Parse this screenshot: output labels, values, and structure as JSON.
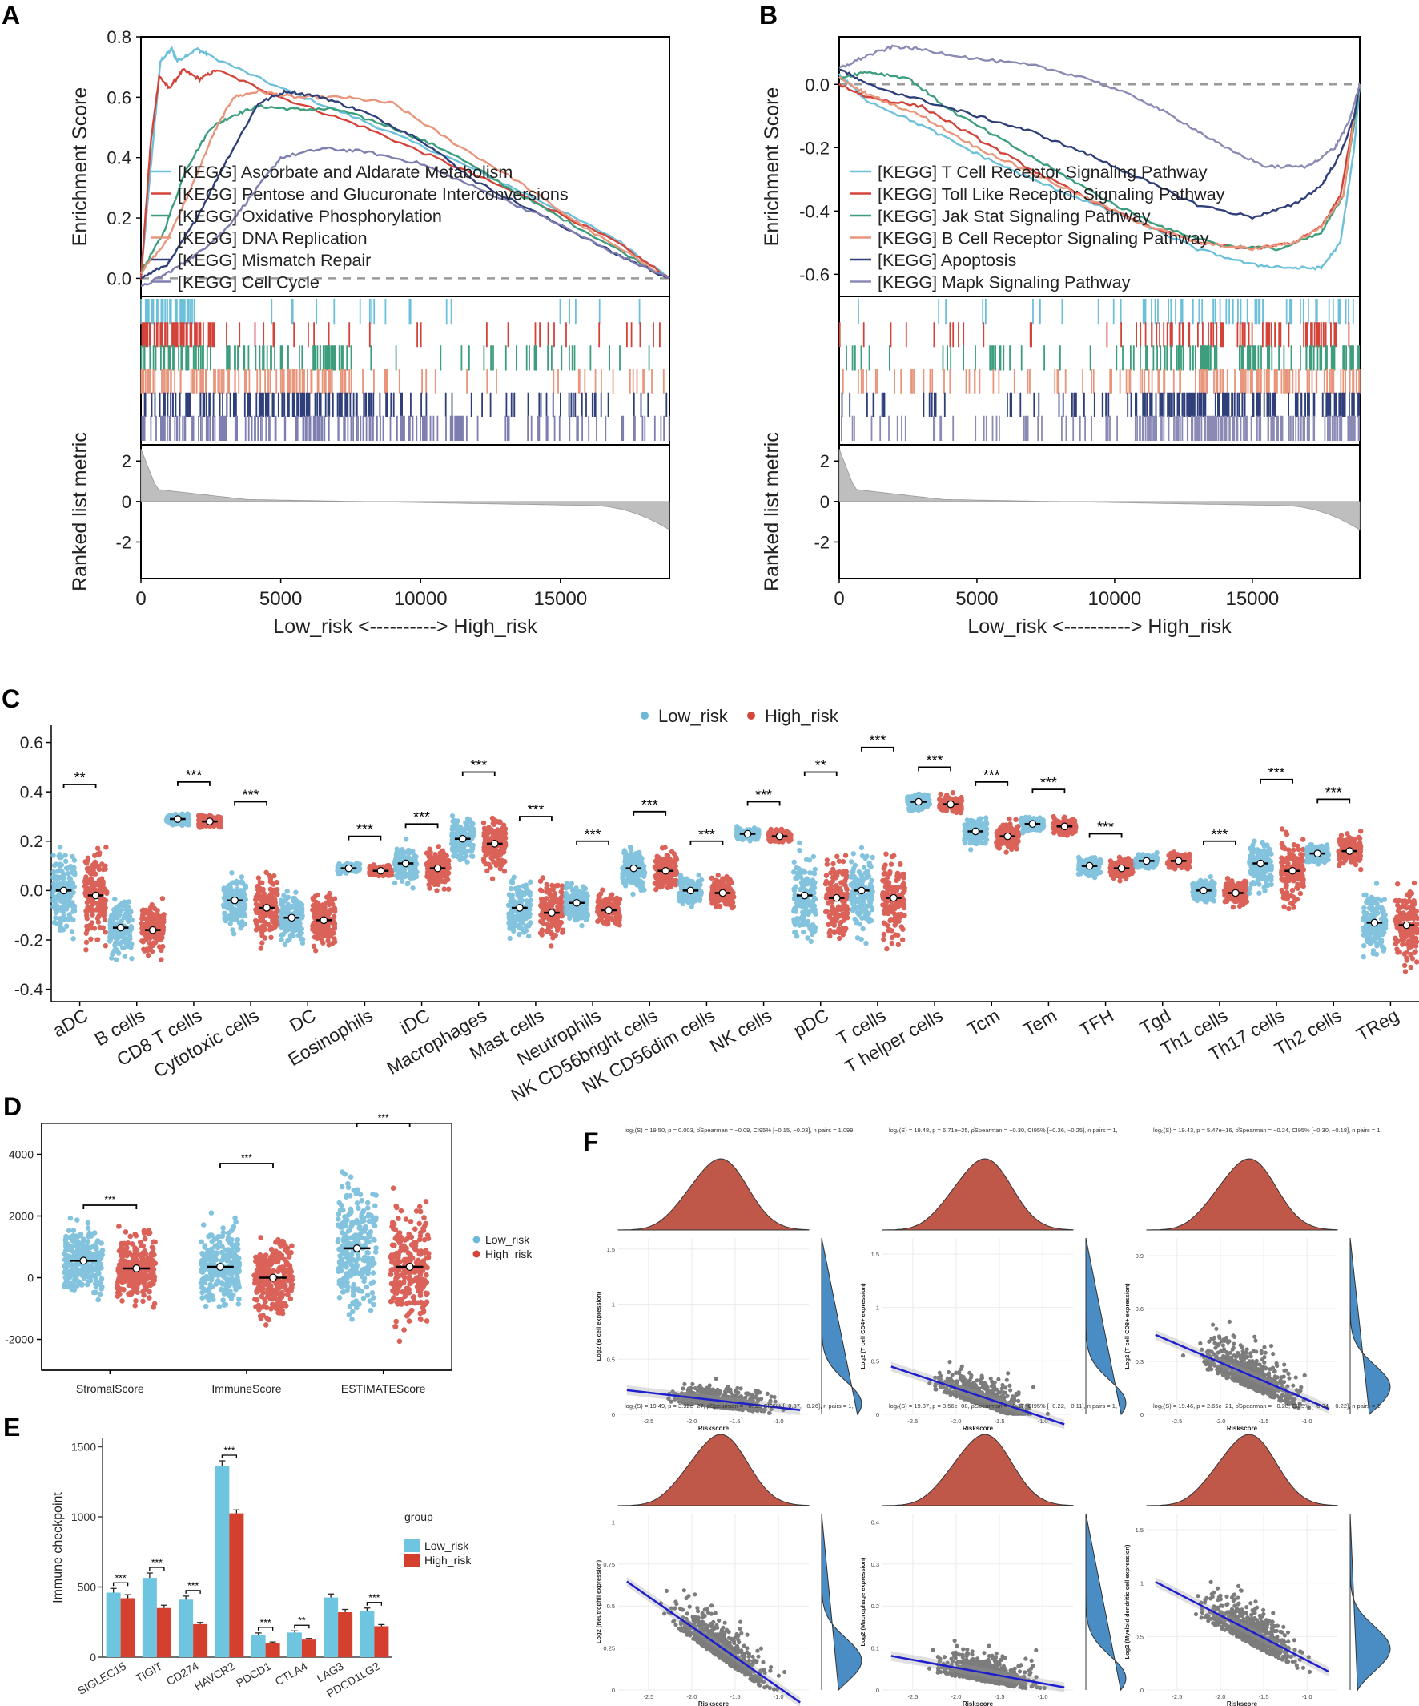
{
  "panel_letters": [
    "A",
    "B",
    "C",
    "D",
    "E",
    "F"
  ],
  "colors": {
    "low": "#6DB8D8",
    "high": "#D4473B",
    "low_bar": "#6EC5E0",
    "high_bar": "#D43F2E",
    "dens_top": "#C0584A",
    "dens_side": "#4A8CC4",
    "fit": "#1E1ECD",
    "grid": "#EBEBEB",
    "ranked": "#BEBEBE",
    "dashed": "#9A9A9A"
  },
  "chart_data": [
    {
      "id": "A",
      "type": "line",
      "title": "",
      "ylabel": "Enrichment Score",
      "ylim": [
        -0.06,
        0.8
      ],
      "yticks": [
        0.0,
        0.2,
        0.4,
        0.6,
        0.8
      ],
      "xlim": [
        0,
        18900
      ],
      "xticks": [
        0,
        5000,
        10000,
        15000
      ],
      "xlabel": "Low_risk <----------> High_risk",
      "ranked_label": "Ranked list metric",
      "ranked_yticks": [
        2,
        0,
        -2
      ],
      "ranked_ylim": [
        -3.8,
        2.8
      ],
      "ranked_range": [
        2.6,
        -1.4
      ],
      "series": [
        {
          "name": "[KEGG] Ascorbate and Aldarate Metabolism",
          "color": "#6DC0DA",
          "x": [
            0,
            400,
            700,
            1100,
            1300,
            2000,
            2400,
            5000,
            8000,
            11000,
            14000,
            17000,
            18900
          ],
          "y": [
            0,
            0.42,
            0.72,
            0.76,
            0.72,
            0.76,
            0.74,
            0.63,
            0.52,
            0.4,
            0.27,
            0.13,
            0.0
          ]
        },
        {
          "name": "[KEGG] Pentose and Glucuronate Interconversions",
          "color": "#D4433A",
          "x": [
            0,
            350,
            650,
            1000,
            1500,
            2100,
            2700,
            5000,
            8000,
            11000,
            14000,
            17000,
            18900
          ],
          "y": [
            0,
            0.45,
            0.67,
            0.63,
            0.69,
            0.66,
            0.69,
            0.6,
            0.5,
            0.38,
            0.26,
            0.12,
            0.0
          ]
        },
        {
          "name": "[KEGG] Oxidative Phosphorylation",
          "color": "#3D9E7E",
          "x": [
            0,
            800,
            1600,
            2500,
            3300,
            4200,
            5500,
            7000,
            9000,
            11000,
            13500,
            16000,
            18900
          ],
          "y": [
            0.02,
            0.15,
            0.36,
            0.5,
            0.54,
            0.57,
            0.56,
            0.56,
            0.5,
            0.42,
            0.28,
            0.15,
            0.0
          ]
        },
        {
          "name": "[KEGG] DNA Replication",
          "color": "#E8957B",
          "x": [
            0,
            900,
            1800,
            2600,
            3300,
            4200,
            5500,
            7200,
            9000,
            11000,
            13500,
            16000,
            18900
          ],
          "y": [
            0.02,
            0.12,
            0.3,
            0.48,
            0.6,
            0.62,
            0.6,
            0.6,
            0.58,
            0.46,
            0.32,
            0.16,
            0.0
          ]
        },
        {
          "name": "[KEGG] Mismatch Repair",
          "color": "#2F3F7A",
          "x": [
            0,
            1000,
            2000,
            3000,
            4200,
            5200,
            6500,
            8000,
            10000,
            12000,
            14500,
            17000,
            18900
          ],
          "y": [
            0.0,
            0.05,
            0.2,
            0.38,
            0.58,
            0.62,
            0.6,
            0.55,
            0.46,
            0.32,
            0.2,
            0.08,
            0.0
          ]
        },
        {
          "name": "[KEGG] Cell Cycle",
          "color": "#7E7EB0",
          "x": [
            0,
            1000,
            2000,
            3000,
            4000,
            5000,
            6500,
            8000,
            10000,
            12000,
            14500,
            17000,
            18900
          ],
          "y": [
            -0.03,
            0.02,
            0.08,
            0.16,
            0.28,
            0.4,
            0.43,
            0.42,
            0.38,
            0.3,
            0.2,
            0.08,
            0.0
          ]
        }
      ]
    },
    {
      "id": "B",
      "type": "line",
      "title": "",
      "ylabel": "Enrichment Score",
      "ylim": [
        -0.67,
        0.15
      ],
      "yticks": [
        0.0,
        -0.2,
        -0.4,
        -0.6
      ],
      "xlim": [
        0,
        18900
      ],
      "xticks": [
        0,
        5000,
        10000,
        15000
      ],
      "xlabel": "Low_risk <----------> High_risk",
      "ranked_label": "Ranked list metric",
      "ranked_yticks": [
        2,
        0,
        -2
      ],
      "ranked_ylim": [
        -3.8,
        2.8
      ],
      "ranked_range": [
        2.6,
        -1.4
      ],
      "series": [
        {
          "name": "[KEGG] T Cell Receptor Signaling Pathway",
          "color": "#6DC0DA",
          "x": [
            0,
            1000,
            3000,
            5000,
            7000,
            9000,
            11000,
            13000,
            15000,
            16500,
            17500,
            18200,
            18700,
            18900
          ],
          "y": [
            0.03,
            -0.05,
            -0.13,
            -0.22,
            -0.3,
            -0.37,
            -0.44,
            -0.52,
            -0.57,
            -0.58,
            -0.58,
            -0.5,
            -0.2,
            0.0
          ]
        },
        {
          "name": "[KEGG] Toll Like Receptor Signaling Pathway",
          "color": "#D4433A",
          "x": [
            0,
            1000,
            3000,
            5000,
            7000,
            9000,
            11000,
            13000,
            15000,
            16500,
            17500,
            18200,
            18700,
            18900
          ],
          "y": [
            0.0,
            -0.04,
            -0.07,
            -0.17,
            -0.27,
            -0.36,
            -0.44,
            -0.5,
            -0.52,
            -0.5,
            -0.45,
            -0.35,
            -0.1,
            0.0
          ]
        },
        {
          "name": "[KEGG] Jak Stat Signaling Pathway",
          "color": "#3D9E7E",
          "x": [
            0,
            1000,
            2500,
            4000,
            6000,
            8000,
            10000,
            12000,
            14000,
            16000,
            17500,
            18300,
            18700,
            18900
          ],
          "y": [
            0.02,
            0.04,
            0.02,
            -0.08,
            -0.18,
            -0.28,
            -0.38,
            -0.46,
            -0.51,
            -0.52,
            -0.47,
            -0.35,
            -0.12,
            0.0
          ]
        },
        {
          "name": "[KEGG] B Cell Receptor Signaling Pathway",
          "color": "#E8957B",
          "x": [
            0,
            1000,
            3000,
            5000,
            7000,
            9000,
            11000,
            13000,
            15000,
            16500,
            17500,
            18300,
            18700,
            18900
          ],
          "y": [
            0.02,
            -0.03,
            -0.1,
            -0.2,
            -0.28,
            -0.36,
            -0.44,
            -0.5,
            -0.52,
            -0.5,
            -0.45,
            -0.35,
            -0.1,
            0.0
          ]
        },
        {
          "name": "[KEGG] Apoptosis",
          "color": "#2F3F7A",
          "x": [
            0,
            1000,
            3000,
            5000,
            7000,
            9000,
            11000,
            13000,
            15000,
            16500,
            17500,
            18200,
            18700,
            18900
          ],
          "y": [
            0.05,
            0.0,
            -0.05,
            -0.1,
            -0.15,
            -0.22,
            -0.3,
            -0.38,
            -0.42,
            -0.38,
            -0.32,
            -0.22,
            -0.1,
            0.0
          ]
        },
        {
          "name": "[KEGG] Mapk Signaling Pathway",
          "color": "#8A8AB5",
          "x": [
            0,
            1000,
            2000,
            3000,
            5000,
            7000,
            9000,
            11000,
            12500,
            14000,
            15500,
            17000,
            18000,
            18500,
            18900
          ],
          "y": [
            0.05,
            0.09,
            0.12,
            0.11,
            0.08,
            0.06,
            0.02,
            -0.05,
            -0.12,
            -0.2,
            -0.26,
            -0.26,
            -0.2,
            -0.12,
            0.0
          ]
        }
      ]
    },
    {
      "id": "C",
      "type": "scatter",
      "legend": [
        "Low_risk",
        "High_risk"
      ],
      "ylim": [
        -0.45,
        0.67
      ],
      "yticks": [
        0.6,
        0.4,
        0.2,
        0.0,
        -0.2,
        -0.4
      ],
      "categories": [
        "aDC",
        "B cells",
        "CD8 T cells",
        "Cytotoxic cells",
        "DC",
        "Eosinophils",
        "iDC",
        "Macrophages",
        "Mast cells",
        "Neutrophils",
        "NK CD56bright cells",
        "NK CD56dim cells",
        "NK cells",
        "pDC",
        "T cells",
        "T helper cells",
        "Tcm",
        "Tem",
        "TFH",
        "Tgd",
        "Th1 cells",
        "Th17 cells",
        "Th2 cells",
        "TReg"
      ],
      "low_median": [
        0.0,
        -0.15,
        0.29,
        -0.04,
        -0.11,
        0.09,
        0.11,
        0.21,
        -0.07,
        -0.05,
        0.09,
        0.0,
        0.23,
        -0.02,
        0.0,
        0.36,
        0.24,
        0.27,
        0.1,
        0.12,
        0.0,
        0.11,
        0.15,
        -0.13
      ],
      "high_median": [
        -0.02,
        -0.16,
        0.28,
        -0.07,
        -0.12,
        0.08,
        0.09,
        0.19,
        -0.09,
        -0.08,
        0.08,
        -0.01,
        0.22,
        -0.03,
        -0.03,
        0.35,
        0.22,
        0.26,
        0.09,
        0.12,
        -0.01,
        0.08,
        0.16,
        -0.14
      ],
      "low_min": [
        -0.2,
        -0.28,
        0.24,
        -0.2,
        -0.27,
        0.05,
        -0.02,
        0.05,
        -0.25,
        -0.2,
        -0.05,
        -0.1,
        0.18,
        -0.25,
        -0.23,
        0.3,
        0.15,
        0.22,
        0.03,
        0.07,
        -0.1,
        -0.1,
        0.06,
        -0.33
      ],
      "low_max": [
        0.38,
        0.12,
        0.33,
        0.22,
        0.1,
        0.12,
        0.26,
        0.38,
        0.15,
        0.06,
        0.25,
        0.1,
        0.26,
        0.4,
        0.36,
        0.42,
        0.33,
        0.33,
        0.16,
        0.16,
        0.06,
        0.29,
        0.2,
        0.1
      ],
      "high_min": [
        -0.3,
        -0.28,
        0.23,
        -0.25,
        -0.3,
        0.05,
        -0.05,
        0.02,
        -0.3,
        -0.18,
        -0.03,
        -0.12,
        0.18,
        -0.27,
        -0.3,
        0.28,
        0.13,
        0.2,
        0.03,
        0.06,
        -0.1,
        -0.17,
        0.06,
        -0.45
      ],
      "high_max": [
        0.35,
        0.08,
        0.32,
        0.22,
        0.06,
        0.12,
        0.25,
        0.38,
        0.13,
        0.05,
        0.26,
        0.08,
        0.26,
        0.35,
        0.32,
        0.4,
        0.32,
        0.32,
        0.16,
        0.17,
        0.08,
        0.3,
        0.28,
        0.12
      ],
      "sig": [
        "**",
        "",
        "***",
        "***",
        "",
        "***",
        "***",
        "***",
        "***",
        "***",
        "***",
        "***",
        "***",
        "**",
        "***",
        "***",
        "***",
        "***",
        "***",
        "",
        "***",
        "***",
        "***",
        ""
      ],
      "sig_y": [
        0.43,
        0,
        0.44,
        0.36,
        0,
        0.22,
        0.27,
        0.48,
        0.3,
        0.2,
        0.32,
        0.2,
        0.36,
        0.48,
        0.58,
        0.5,
        0.44,
        0.41,
        0.23,
        0,
        0.2,
        0.45,
        0.37,
        0
      ]
    },
    {
      "id": "D",
      "type": "scatter",
      "legend": [
        "Low_risk",
        "High_risk"
      ],
      "ylim": [
        -3000,
        5000
      ],
      "yticks": [
        4000,
        2000,
        0,
        -2000
      ],
      "categories": [
        "StromalScore",
        "ImmuneScore",
        "ESTIMATEScore"
      ],
      "low_median": [
        550,
        350,
        950
      ],
      "high_median": [
        300,
        0,
        350
      ],
      "low_min": [
        -1500,
        -1500,
        -2900
      ],
      "low_max": [
        2200,
        3000,
        4800
      ],
      "high_min": [
        -2000,
        -1700,
        -3100
      ],
      "high_max": [
        2200,
        2700,
        3600
      ],
      "sig": [
        "***",
        "***",
        "***"
      ],
      "sig_y": [
        2350,
        3700,
        5000
      ]
    },
    {
      "id": "E",
      "type": "bar",
      "ylabel": "Immune checkpoint",
      "legend_title": "group",
      "legend": [
        "Low_risk",
        "High_risk"
      ],
      "ylim": [
        0,
        1560
      ],
      "yticks": [
        0,
        500,
        1000,
        1500
      ],
      "categories": [
        "SIGLEC15",
        "TIGIT",
        "CD274",
        "HAVCR2",
        "PDCD1",
        "CTLA4",
        "LAG3",
        "PDCD1LG2"
      ],
      "series": [
        {
          "name": "Low_risk",
          "values": [
            460,
            565,
            410,
            1365,
            160,
            175,
            425,
            330
          ],
          "err": [
            30,
            35,
            25,
            35,
            12,
            12,
            25,
            20
          ]
        },
        {
          "name": "High_risk",
          "values": [
            420,
            350,
            235,
            1025,
            100,
            125,
            320,
            220
          ],
          "err": [
            25,
            20,
            12,
            25,
            8,
            8,
            20,
            12
          ]
        }
      ],
      "sig": [
        "***",
        "***",
        "***",
        "***",
        "***",
        "**",
        "",
        "***"
      ]
    },
    {
      "id": "F",
      "type": "scatter",
      "xticks": [
        -2.5,
        -2.0,
        -1.5,
        -1.0
      ],
      "xlabel": "Riskscore",
      "subplots": [
        {
          "stats": "logₑ(S) = 19.50, p = 0.003, ρ̂Spearman = −0.09, CI95% [−0.15, −0.03], n pairs = 1,099",
          "ylabel": "Log2 (B cell expression)",
          "yticks": [
            0.0,
            0.5,
            1.0,
            1.5
          ],
          "ylim": [
            0,
            1.6
          ],
          "slope": -0.06,
          "intercept": 0.08,
          "ymean": 0.12,
          "yspread": 0.15
        },
        {
          "stats": "logₑ(S) = 19.48, p = 6.71e−25, ρ̂Spearman = −0.30, CI95% [−0.36, −0.25], n pairs = 1,",
          "ylabel": "Log2 (T cell CD4+ expression)",
          "yticks": [
            0.0,
            0.5,
            1.0,
            1.5
          ],
          "ylim": [
            0,
            1.65
          ],
          "slope": -0.18,
          "intercept": -0.07,
          "ymean": 0.15,
          "yspread": 0.2
        },
        {
          "stats": "logₑ(S) = 19.43, p = 5.47e−16, ρ̂Spearman = −0.24, CI95% [−0.30, −0.18], n pairs = 1,",
          "ylabel": "Log2 (T cell CD8+ expression)",
          "yticks": [
            0.0,
            0.3,
            0.6,
            0.9
          ],
          "ylim": [
            0,
            1.0
          ],
          "slope": -0.14,
          "intercept": 0.0,
          "ymean": 0.22,
          "yspread": 0.18
        },
        {
          "stats": "logₑ(S) = 19.49, p = 3.92e−27, ρ̂Spearman = −0.32, CI95% [−0.37, −0.26], n pairs = 1,",
          "ylabel": "Log2 (Neutrophil expression)",
          "yticks": [
            0.0,
            0.25,
            0.5,
            0.75,
            1.0
          ],
          "ylim": [
            0,
            1.05
          ],
          "slope": -0.24,
          "intercept": -0.1,
          "ymean": 0.25,
          "yspread": 0.17
        },
        {
          "stats": "logₑ(S) = 19.37, p = 3.56e−08, ρ̂Spearman = −0.17, CI95% [−0.22, −0.11], n pairs = 1,",
          "ylabel": "Log2 (Macrophage expression)",
          "yticks": [
            0.0,
            0.1,
            0.2,
            0.3,
            0.4
          ],
          "ylim": [
            0,
            0.42
          ],
          "slope": -0.025,
          "intercept": -0.005,
          "ymean": 0.04,
          "yspread": 0.05
        },
        {
          "stats": "logₑ(S) = 19.46, p = 2.65e−21, ρ̂Spearman = −0.28, CI95% [−0.34, −0.22], n pairs = 1,",
          "ylabel": "Log2 (Myeloid dendritic cell expression)",
          "yticks": [
            0.0,
            0.5,
            1.0,
            1.5
          ],
          "ylim": [
            0,
            1.65
          ],
          "slope": -0.28,
          "intercept": 0.1,
          "ymean": 0.55,
          "yspread": 0.3
        }
      ]
    }
  ]
}
